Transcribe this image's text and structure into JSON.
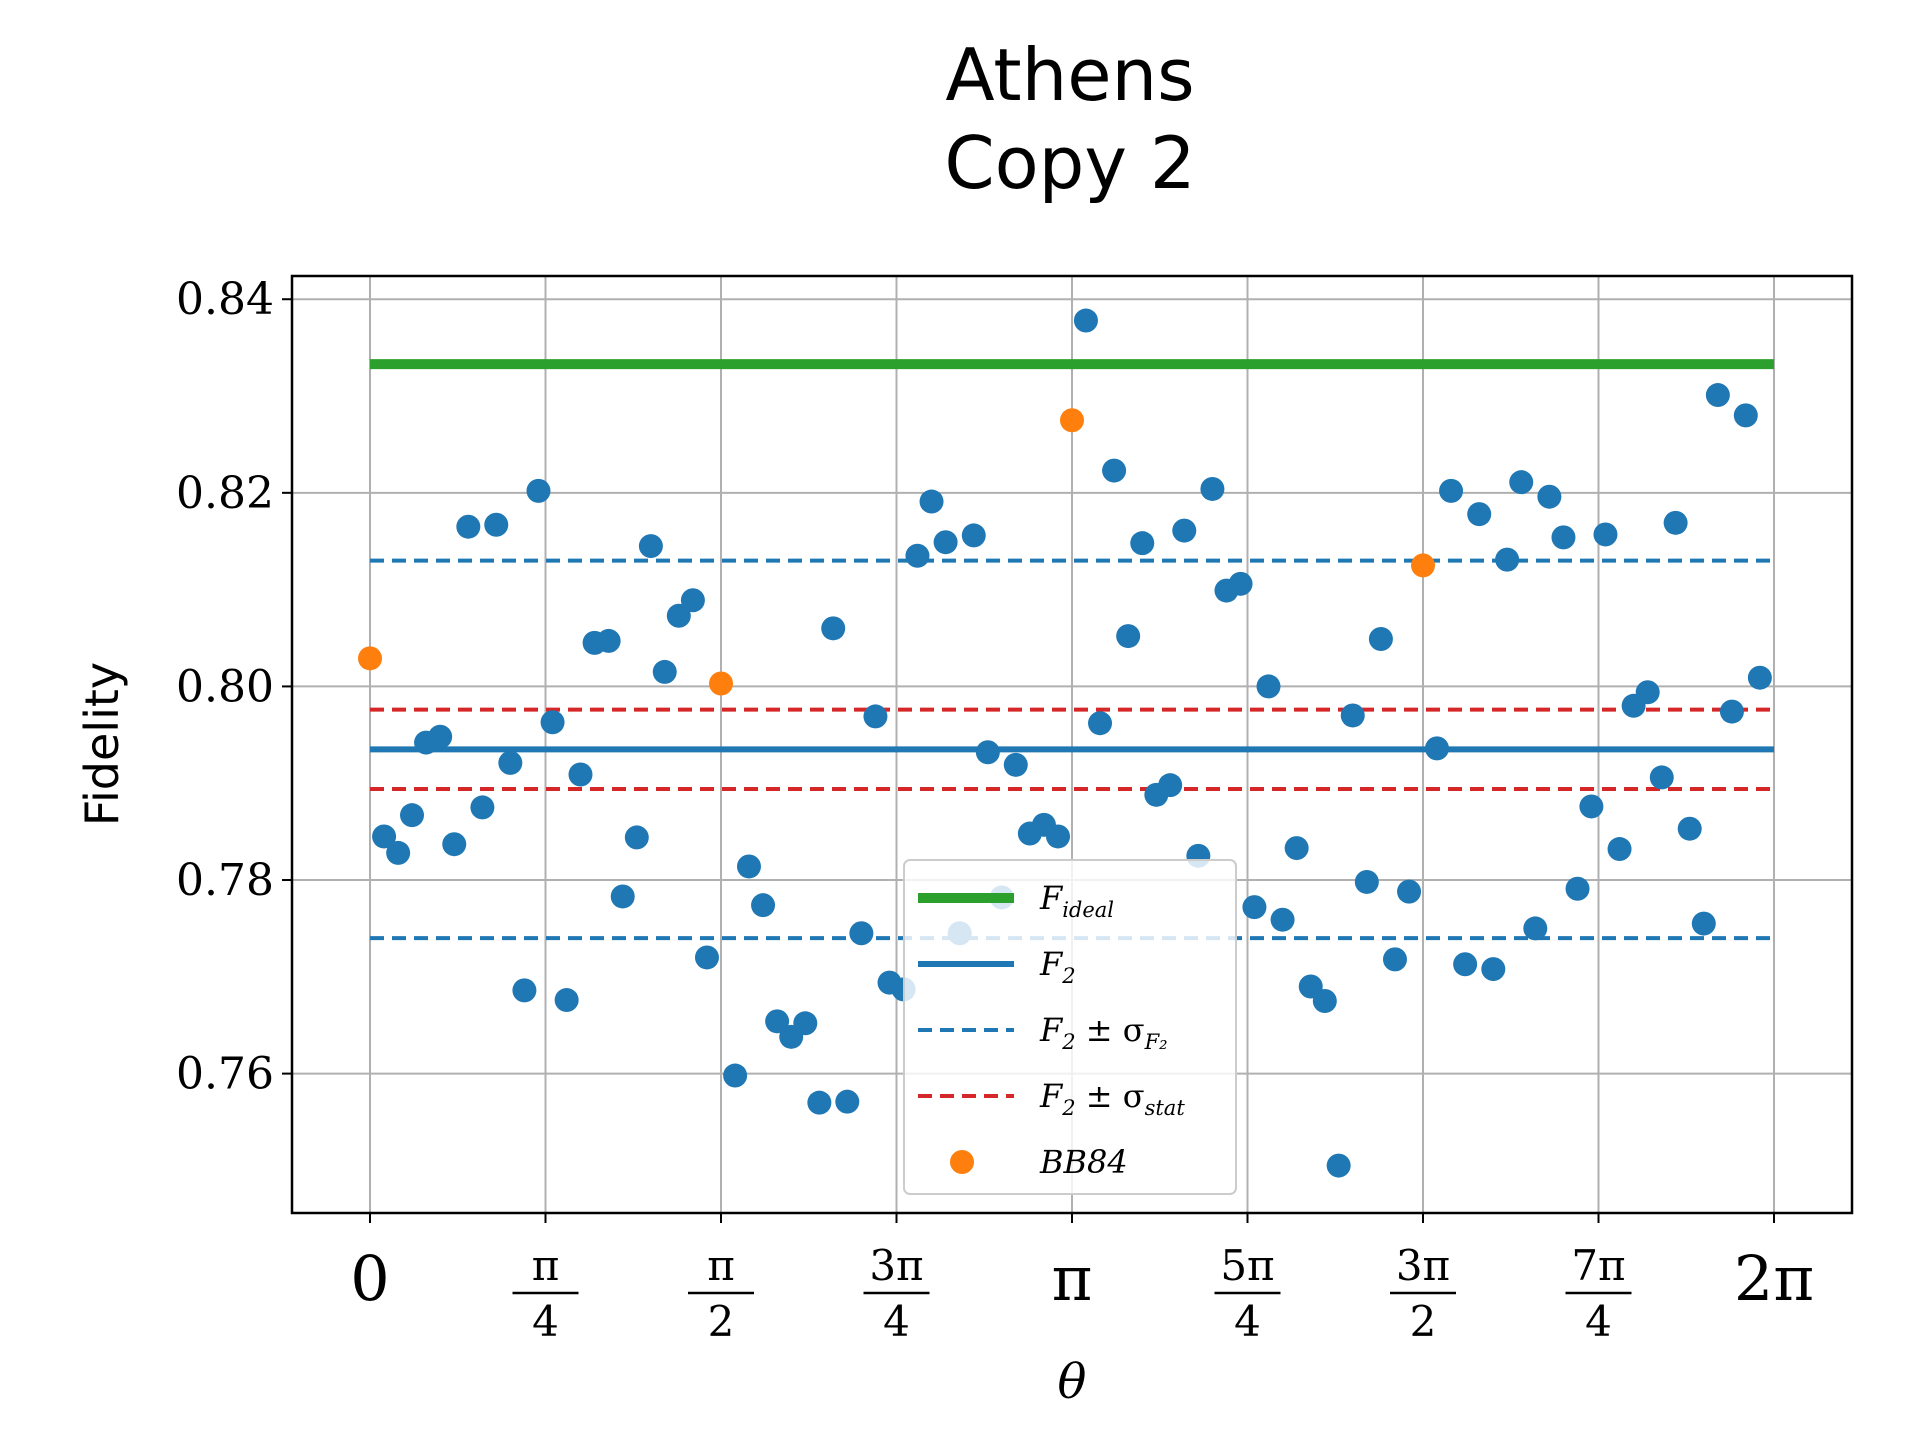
{
  "chart_data": {
    "type": "scatter",
    "title": [
      "Athens",
      "Copy 2"
    ],
    "xlabel": "θ",
    "ylabel": "Fidelity",
    "xlim": [
      -0.3491,
      6.6323
    ],
    "ylim": [
      0.7456,
      0.8424
    ],
    "grid": true,
    "yticks": [
      {
        "value": 0.76,
        "label": "0.76"
      },
      {
        "value": 0.78,
        "label": "0.78"
      },
      {
        "value": 0.8,
        "label": "0.80"
      },
      {
        "value": 0.82,
        "label": "0.82"
      },
      {
        "value": 0.84,
        "label": "0.84"
      }
    ],
    "xticks": [
      {
        "value": 0,
        "num": "0",
        "den": ""
      },
      {
        "value": 0.7854,
        "num": "π",
        "den": "4"
      },
      {
        "value": 1.5708,
        "num": "π",
        "den": "2"
      },
      {
        "value": 2.3562,
        "num": "3π",
        "den": "4"
      },
      {
        "value": 3.1416,
        "num": "π",
        "den": ""
      },
      {
        "value": 3.927,
        "num": "5π",
        "den": "4"
      },
      {
        "value": 4.7124,
        "num": "3π",
        "den": "2"
      },
      {
        "value": 5.4978,
        "num": "7π",
        "den": "4"
      },
      {
        "value": 6.2832,
        "num": "2π",
        "den": ""
      }
    ],
    "colors": {
      "ideal": "#2ca02c",
      "f2": "#1f77b4",
      "sigma_f2": "#1f77b4",
      "sigma_stat": "#d62728",
      "points": "#1f77b4",
      "bb84": "#ff7f0e"
    },
    "lines": {
      "ideal": 0.8333,
      "f2": 0.7935,
      "sigma_f2": [
        0.774,
        0.813
      ],
      "sigma_stat": [
        0.7894,
        0.7976
      ]
    },
    "series": {
      "points": {
        "x": [
          0.063,
          0.126,
          0.188,
          0.251,
          0.314,
          0.377,
          0.44,
          0.503,
          0.565,
          0.628,
          0.691,
          0.754,
          0.817,
          0.88,
          0.942,
          1.005,
          1.068,
          1.131,
          1.194,
          1.257,
          1.319,
          1.382,
          1.445,
          1.508,
          1.634,
          1.696,
          1.759,
          1.822,
          1.885,
          1.948,
          2.011,
          2.073,
          2.136,
          2.199,
          2.262,
          2.325,
          2.388,
          2.45,
          2.513,
          2.576,
          2.639,
          2.702,
          2.765,
          2.827,
          2.89,
          2.953,
          3.016,
          3.079,
          3.204,
          3.267,
          3.33,
          3.393,
          3.456,
          3.519,
          3.581,
          3.644,
          3.707,
          3.77,
          3.833,
          3.896,
          3.958,
          4.021,
          4.084,
          4.147,
          4.21,
          4.273,
          4.335,
          4.398,
          4.461,
          4.524,
          4.587,
          4.65,
          4.775,
          4.838,
          4.901,
          4.964,
          5.027,
          5.089,
          5.152,
          5.215,
          5.278,
          5.341,
          5.404,
          5.466,
          5.529,
          5.592,
          5.655,
          5.718,
          5.781,
          5.843,
          5.906,
          5.969,
          6.032,
          6.095,
          6.157,
          6.22
        ],
        "y": [
          0.7845,
          0.7828,
          0.7867,
          0.7942,
          0.7948,
          0.7837,
          0.8165,
          0.7875,
          0.8167,
          0.7921,
          0.7686,
          0.8202,
          0.7963,
          0.7676,
          0.7909,
          0.8045,
          0.8047,
          0.7783,
          0.7844,
          0.8145,
          0.8015,
          0.8073,
          0.8089,
          0.772,
          0.7598,
          0.7814,
          0.7774,
          0.7654,
          0.7638,
          0.7652,
          0.757,
          0.806,
          0.7571,
          0.7745,
          0.7969,
          0.7694,
          0.7687,
          0.8135,
          0.8191,
          0.8149,
          0.7745,
          0.8156,
          0.7932,
          0.7782,
          0.7919,
          0.7848,
          0.7857,
          0.7845,
          0.8378,
          0.7962,
          0.8223,
          0.8052,
          0.8148,
          0.7888,
          0.7898,
          0.8161,
          0.7825,
          0.8204,
          0.8099,
          0.8106,
          0.7772,
          0.8,
          0.7759,
          0.7833,
          0.769,
          0.7675,
          0.7505,
          0.797,
          0.7798,
          0.8049,
          0.7718,
          0.7788,
          0.7936,
          0.8202,
          0.7713,
          0.8178,
          0.7708,
          0.8131,
          0.8211,
          0.775,
          0.8196,
          0.8154,
          0.7791,
          0.7876,
          0.8157,
          0.7832,
          0.798,
          0.7994,
          0.7906,
          0.8169,
          0.7853,
          0.7755,
          0.8301,
          0.7974,
          0.828,
          0.8009
        ]
      },
      "bb84": {
        "x": [
          0,
          1.5708,
          3.1416,
          4.7124
        ],
        "y": [
          0.8029,
          0.8003,
          0.8275,
          0.8125
        ]
      }
    },
    "legend": {
      "position": "lower center",
      "entries": [
        {
          "key": "ideal",
          "main": "F",
          "sub": "ideal",
          "rest": "",
          "rest_sub": ""
        },
        {
          "key": "f2",
          "main": "F",
          "sub": "2",
          "rest": "",
          "rest_sub": ""
        },
        {
          "key": "sigma_f2",
          "main": "F",
          "sub": "2",
          "rest": " ± σ",
          "rest_sub": "F₂"
        },
        {
          "key": "sigma_stat",
          "main": "F",
          "sub": "2",
          "rest": " ± σ",
          "rest_sub": "stat"
        },
        {
          "key": "bb84",
          "main": "BB84",
          "sub": "",
          "rest": "",
          "rest_sub": ""
        }
      ]
    }
  }
}
